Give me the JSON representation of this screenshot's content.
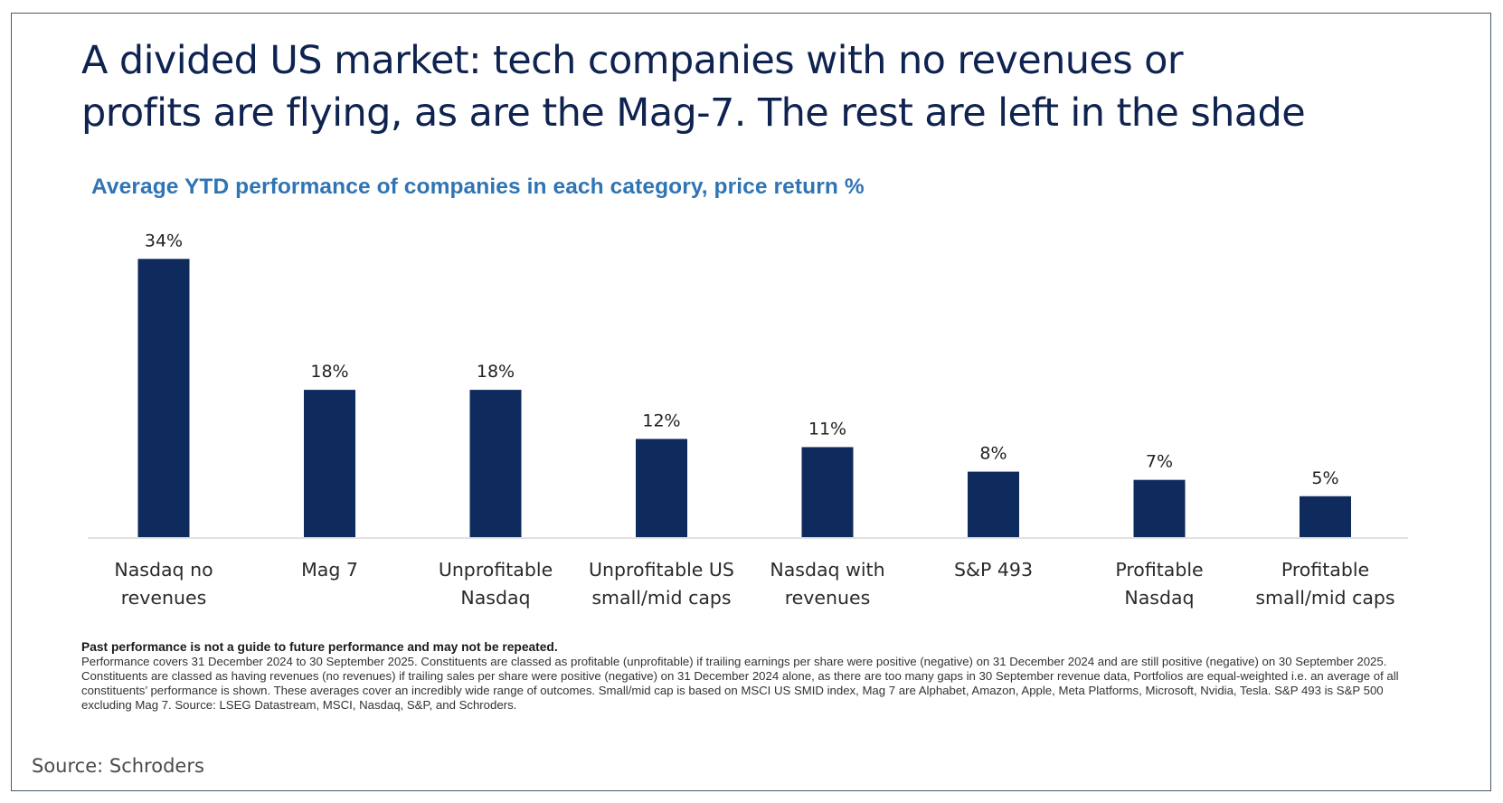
{
  "title": "A divided US market: tech companies with no revenues or profits are flying, as are the Mag-7. The rest are left in the shade",
  "title_lines": [
    "A divided US market: tech companies with no revenues or",
    "profits are flying, as are the Mag-7. The rest are left in the shade"
  ],
  "subtitle": "Average YTD performance of companies in each category, price return %",
  "colors": {
    "bar": "#0f2a5c",
    "title": "#0f2350",
    "subtitle": "#2f74b5",
    "axis": "#d9d9d9"
  },
  "chart_data": {
    "type": "bar",
    "title": "Average YTD performance of companies in each category, price return %",
    "xlabel": "",
    "ylabel": "",
    "ylim": [
      0,
      36
    ],
    "grid": false,
    "legend": "none",
    "categories": [
      [
        "Nasdaq no",
        "revenues"
      ],
      [
        "Mag 7"
      ],
      [
        "Unprofitable",
        "Nasdaq"
      ],
      [
        "Unprofitable US",
        "small/mid caps"
      ],
      [
        "Nasdaq with",
        "revenues"
      ],
      [
        "S&P 493"
      ],
      [
        "Profitable",
        "Nasdaq"
      ],
      [
        "Profitable",
        "small/mid caps"
      ]
    ],
    "values": [
      34,
      18,
      18,
      12,
      11,
      8,
      7,
      5
    ],
    "data_labels": [
      "34%",
      "18%",
      "18%",
      "12%",
      "11%",
      "8%",
      "7%",
      "5%"
    ]
  },
  "disclaimer": {
    "heading": "Past performance is not a guide to future performance and may not be repeated.",
    "body": "Performance covers 31 December 2024 to 30 September 2025. Constituents are classed as profitable (unprofitable) if trailing earnings per share were positive (negative) on 31 December 2024 and are still positive (negative) on 30 September 2025. Constituents are classed as having revenues (no revenues) if trailing sales per share were positive (negative) on 31 December 2024 alone, as there are too many gaps in 30 September revenue data, Portfolios are equal-weighted i.e. an average of all constituents’ performance is shown. These averages cover an incredibly wide range of outcomes. Small/mid cap is based on MSCI US SMID index, Mag 7 are Alphabet, Amazon, Apple, Meta Platforms, Microsoft, Nvidia, Tesla. S&P 493 is S&P 500 excluding Mag 7. Source: LSEG Datastream, MSCI, Nasdaq, S&P, and Schroders."
  },
  "source": "Source: Schroders"
}
